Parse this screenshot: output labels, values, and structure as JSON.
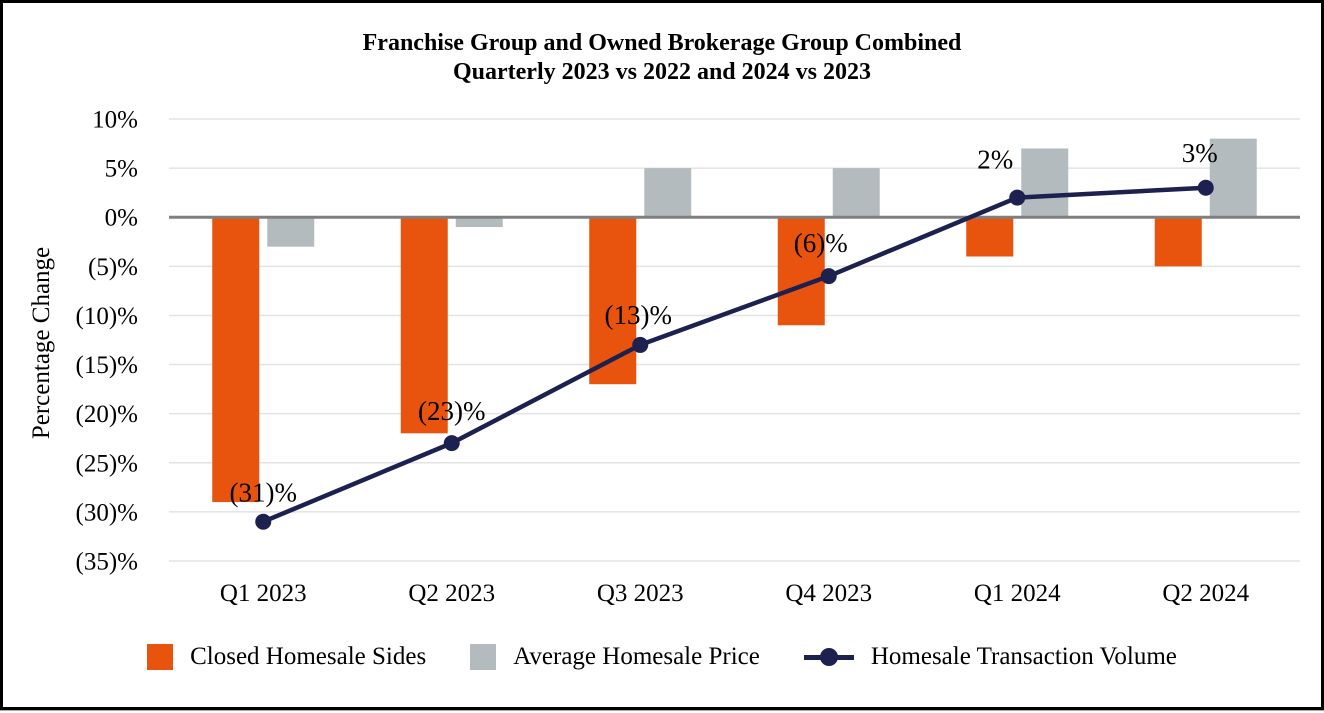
{
  "page": {
    "background": "#FFFFFF",
    "frame_border_color": "#000000"
  },
  "chart_data": {
    "type": "combo-bar-line",
    "title": "Franchise Group and Owned Brokerage Group Combined",
    "subtitle": "Quarterly 2023 vs 2022 and 2024 vs 2023",
    "ylabel": "Percentage Change",
    "categories": [
      "Q1 2023",
      "Q2 2023",
      "Q3 2023",
      "Q4 2023",
      "Q1 2024",
      "Q2 2024"
    ],
    "y_axis": {
      "min": -35,
      "max": 10,
      "step": 5,
      "tick_labels": [
        "10%",
        "5%",
        "0%",
        "(5)%",
        "(10)%",
        "(15)%",
        "(20)%",
        "(25)%",
        "(30)%",
        "(35)%"
      ],
      "grid": true,
      "grid_color": "#E3E3E3",
      "zero_line_color": "#7F7F7F"
    },
    "series": [
      {
        "name": "Closed Homesale Sides",
        "type": "bar",
        "color": "#E8530D",
        "values": [
          -29,
          -22,
          -17,
          -11,
          -4,
          -5
        ]
      },
      {
        "name": "Average Homesale Price",
        "type": "bar",
        "color": "#B4BBBF",
        "values": [
          -3,
          -1,
          5,
          5,
          7,
          8
        ]
      },
      {
        "name": "Homesale Transaction Volume",
        "type": "line",
        "color": "#1C2150",
        "values": [
          -31,
          -23,
          -13,
          -6,
          2,
          3
        ],
        "point_labels": [
          "(31)%",
          "(23)%",
          "(13)%",
          "(6)%",
          "2%",
          "3%"
        ]
      }
    ],
    "legend_position": "bottom"
  }
}
